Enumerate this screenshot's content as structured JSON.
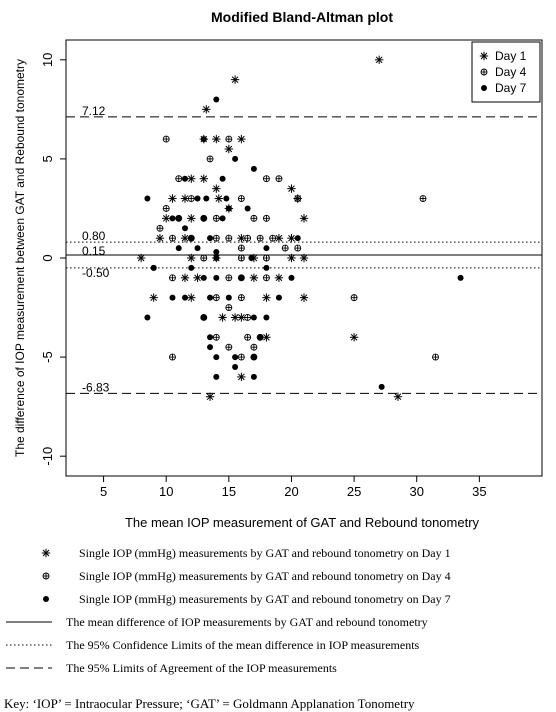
{
  "chart_data": {
    "type": "scatter",
    "title": "Modified Bland-Altman plot",
    "xlabel": "The mean IOP measurement of GAT and Rebound tonometry",
    "ylabel": "The difference of IOP measurement between GAT and Rebound tonometry",
    "xlim": [
      2,
      40
    ],
    "ylim": [
      -11,
      11
    ],
    "xticks": [
      5,
      10,
      15,
      20,
      25,
      30,
      35
    ],
    "yticks": [
      -10,
      -5,
      0,
      5,
      10
    ],
    "grid": false,
    "legend_position": "top-right",
    "reference_lines": [
      {
        "label": "7.12",
        "y": 7.12,
        "style": "dashed"
      },
      {
        "label": "0.80",
        "y": 0.8,
        "style": "dotted"
      },
      {
        "label": "0.15",
        "y": 0.15,
        "style": "solid"
      },
      {
        "label": "-0.50",
        "y": -0.5,
        "style": "dotted"
      },
      {
        "label": "-6.83",
        "y": -6.83,
        "style": "dashed"
      }
    ],
    "series": [
      {
        "name": "Day 1",
        "marker": "asterisk",
        "points": [
          [
            15.5,
            9
          ],
          [
            27,
            10
          ],
          [
            13.2,
            7.5
          ],
          [
            13,
            6
          ],
          [
            14,
            6
          ],
          [
            16,
            6
          ],
          [
            15,
            5.5
          ],
          [
            12,
            4
          ],
          [
            13,
            4
          ],
          [
            14,
            3.5
          ],
          [
            20,
            3.5
          ],
          [
            20.5,
            3
          ],
          [
            14.2,
            3
          ],
          [
            10.5,
            3
          ],
          [
            11.5,
            3
          ],
          [
            15,
            2.5
          ],
          [
            12,
            2
          ],
          [
            10,
            2
          ],
          [
            21,
            2
          ],
          [
            16,
            1
          ],
          [
            19,
            1
          ],
          [
            11.5,
            1
          ],
          [
            9.5,
            1
          ],
          [
            20,
            1
          ],
          [
            8,
            0
          ],
          [
            12,
            0
          ],
          [
            17,
            0
          ],
          [
            14,
            0
          ],
          [
            20,
            0
          ],
          [
            21,
            0
          ],
          [
            19,
            -1
          ],
          [
            11.5,
            -1
          ],
          [
            12.5,
            -1
          ],
          [
            17,
            -1
          ],
          [
            9,
            -2
          ],
          [
            12,
            -2
          ],
          [
            18,
            -2
          ],
          [
            21,
            -2
          ],
          [
            14.5,
            -3
          ],
          [
            15.5,
            -3
          ],
          [
            16,
            -3
          ],
          [
            18,
            -4
          ],
          [
            25,
            -4
          ],
          [
            16,
            -6
          ],
          [
            13.5,
            -7
          ],
          [
            28.5,
            -7
          ]
        ]
      },
      {
        "name": "Day 4",
        "marker": "circle-plus",
        "points": [
          [
            10,
            6
          ],
          [
            15,
            6
          ],
          [
            13.5,
            5
          ],
          [
            11,
            4
          ],
          [
            18,
            4
          ],
          [
            19,
            4
          ],
          [
            16,
            3
          ],
          [
            10,
            2.5
          ],
          [
            12,
            3
          ],
          [
            20.5,
            3
          ],
          [
            30.5,
            3
          ],
          [
            11,
            2
          ],
          [
            13,
            2
          ],
          [
            14,
            2
          ],
          [
            17,
            2
          ],
          [
            18,
            2
          ],
          [
            9.5,
            1.5
          ],
          [
            14,
            1
          ],
          [
            10.5,
            1
          ],
          [
            12,
            1
          ],
          [
            15,
            1
          ],
          [
            16.5,
            1
          ],
          [
            17.5,
            1
          ],
          [
            18.5,
            1
          ],
          [
            16,
            0.5
          ],
          [
            19.5,
            0.5
          ],
          [
            20.5,
            0.5
          ],
          [
            13,
            0
          ],
          [
            16,
            0
          ],
          [
            18,
            0
          ],
          [
            10.5,
            -1
          ],
          [
            15,
            -1
          ],
          [
            16,
            -1
          ],
          [
            18,
            -1
          ],
          [
            14,
            -2
          ],
          [
            16,
            -2
          ],
          [
            25,
            -2
          ],
          [
            15,
            -2.5
          ],
          [
            13,
            -3
          ],
          [
            16.5,
            -3
          ],
          [
            14,
            -4
          ],
          [
            16.5,
            -4
          ],
          [
            17.5,
            -4
          ],
          [
            15,
            -4.5
          ],
          [
            17,
            -4.5
          ],
          [
            16,
            -5
          ],
          [
            17,
            -5
          ],
          [
            10.5,
            -5
          ],
          [
            31.5,
            -5
          ]
        ]
      },
      {
        "name": "Day 7",
        "marker": "filled-circle",
        "points": [
          [
            14,
            8
          ],
          [
            13,
            6
          ],
          [
            15.5,
            5
          ],
          [
            17,
            4.5
          ],
          [
            11.5,
            4
          ],
          [
            14.5,
            4
          ],
          [
            12.5,
            3
          ],
          [
            8.5,
            3
          ],
          [
            13.2,
            3
          ],
          [
            14.8,
            3
          ],
          [
            15,
            2.5
          ],
          [
            16.5,
            2.5
          ],
          [
            10.5,
            2
          ],
          [
            11,
            2
          ],
          [
            13,
            2
          ],
          [
            14.5,
            2
          ],
          [
            11.5,
            1.5
          ],
          [
            12,
            1
          ],
          [
            13.5,
            1
          ],
          [
            20.5,
            1
          ],
          [
            11,
            0.5
          ],
          [
            12.5,
            0.5
          ],
          [
            14,
            0.3
          ],
          [
            14,
            0
          ],
          [
            18,
            0.5
          ],
          [
            16.8,
            0
          ],
          [
            12,
            -0.5
          ],
          [
            18,
            -0.5
          ],
          [
            13,
            -1
          ],
          [
            16,
            -1
          ],
          [
            14,
            -1
          ],
          [
            20,
            -1
          ],
          [
            9,
            -0.5
          ],
          [
            10.5,
            -2
          ],
          [
            11.5,
            -2
          ],
          [
            13.5,
            -2
          ],
          [
            15,
            -2
          ],
          [
            19,
            -2
          ],
          [
            9,
            -0.5
          ],
          [
            8.5,
            -3
          ],
          [
            13,
            -3
          ],
          [
            17,
            -3
          ],
          [
            18,
            -3
          ],
          [
            13.5,
            -4
          ],
          [
            17.5,
            -4
          ],
          [
            13.5,
            -4.5
          ],
          [
            14,
            -5
          ],
          [
            15.5,
            -5
          ],
          [
            17,
            -5
          ],
          [
            14,
            -6
          ],
          [
            15.5,
            -5.5
          ],
          [
            17,
            -6
          ],
          [
            27.2,
            -6.5
          ],
          [
            33.5,
            -1
          ]
        ]
      }
    ]
  },
  "legend_items": [
    {
      "label": "Day 1",
      "marker": "asterisk"
    },
    {
      "label": "Day 4",
      "marker": "circle-plus"
    },
    {
      "label": "Day 7",
      "marker": "filled-circle"
    }
  ],
  "caption_entries": [
    {
      "marker": "asterisk",
      "text": "Single IOP (mmHg) measurements by GAT and rebound tonometry on Day 1"
    },
    {
      "marker": "circle-plus",
      "text": "Single IOP (mmHg) measurements by GAT and rebound tonometry on Day 4"
    },
    {
      "marker": "filled-circle",
      "text": "Single IOP (mmHg) measurements by GAT and rebound tonometry on Day 7"
    },
    {
      "marker": "solid-line",
      "text": "The mean difference of IOP measurements by GAT and rebound tonometry"
    },
    {
      "marker": "dotted-line",
      "text": "The 95% Confidence Limits of the mean difference in IOP measurements"
    },
    {
      "marker": "dashed-line",
      "text": "The 95% Limits of Agreement of the IOP measurements"
    }
  ],
  "key_note": "Key: ‘IOP’ = Intraocular Pressure; ‘GAT’ = Goldmann Applanation Tonometry"
}
